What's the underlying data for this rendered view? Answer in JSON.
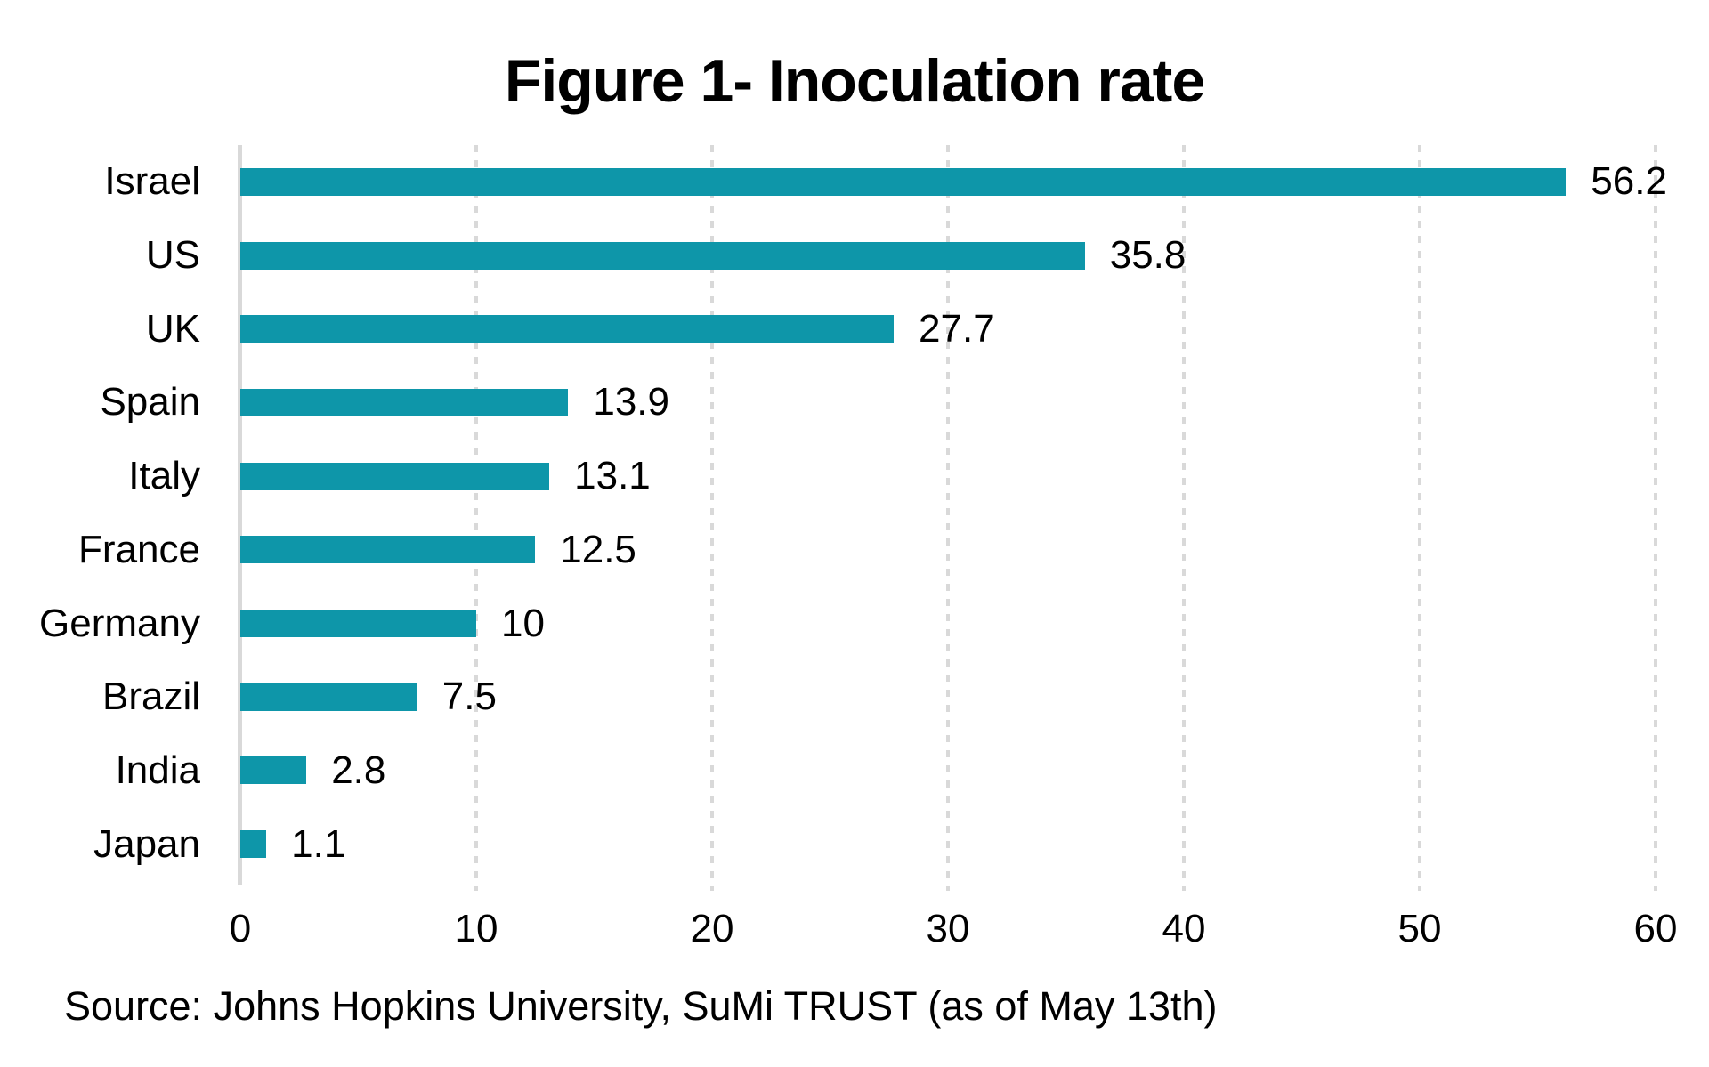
{
  "title": "Figure 1- Inoculation rate",
  "source": "Source: Johns Hopkins University, SuMi TRUST (as of May 13th)",
  "colors": {
    "bar": "#0E96A9",
    "axis": "#D9D9D9",
    "grid": "#D9D9D9",
    "text": "#000000"
  },
  "chart_data": {
    "type": "bar",
    "orientation": "horizontal",
    "title": "Figure 1- Inoculation rate",
    "categories": [
      "Israel",
      "US",
      "UK",
      "Spain",
      "Italy",
      "France",
      "Germany",
      "Brazil",
      "India",
      "Japan"
    ],
    "values": [
      56.2,
      35.8,
      27.7,
      13.9,
      13.1,
      12.5,
      10,
      7.5,
      2.8,
      1.1
    ],
    "value_labels": [
      "56.2",
      "35.8",
      "27.7",
      "13.9",
      "13.1",
      "12.5",
      "10",
      "7.5",
      "2.8",
      "1.1"
    ],
    "xlabel": "",
    "ylabel": "",
    "xlim": [
      0,
      60
    ],
    "xticks": [
      0,
      10,
      20,
      30,
      40,
      50,
      60
    ],
    "grid": "vertical-dashed",
    "legend": "none",
    "bar_color": "#0E96A9"
  }
}
